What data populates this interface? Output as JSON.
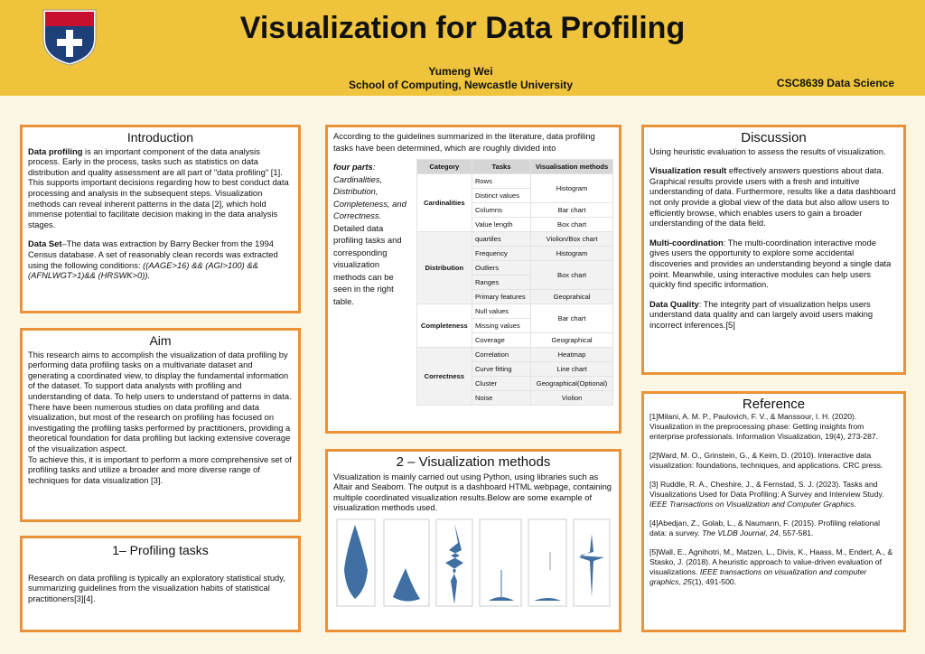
{
  "header": {
    "title": "Visualization for Data Profiling",
    "author": "Yumeng Wei",
    "affiliation": "School of Computing, Newcastle University",
    "course": "CSC8639 Data Science"
  },
  "introduction": {
    "heading": "Introduction",
    "lead": "Data profiling",
    "text": " is an important component of the data analysis process. Early in the process, tasks such as statistics on data distribution and quality assessment are all part of \"data profiling\" [1]. This supports important decisions regarding how to best conduct data processing and analysis in the subsequent steps. Visualization methods can reveal inherent patterns in the data [2], which hold immense potential to facilitate decision making in the data analysis stages.",
    "dataset_lead": "Data Set",
    "dataset_text": "–The data was extraction by Barry Becker from the 1994 Census database. A set of reasonably clean records was extracted using the following conditions: ",
    "dataset_conditions": "((AAGE>16) && (AGI>100) && (AFNLWGT>1)&& (HRSWK>0))."
  },
  "aim": {
    "heading": "Aim",
    "paragraphs": [
      "This research aims to accomplish the visualization of data profiling by performing data profiling tasks on a multivariate dataset and generating a coordinated view, to display the fundamental information of the dataset. To support data analysts with profiling and understanding of data. To help users to understand of patterns in data. There have been numerous studies on data profiling and data visualization, but most of the research on profiling has focused on investigating the profiling tasks performed by practitioners, providing a theoretical foundation for data profiling but lacking extensive coverage of the visualization aspect.",
      "To achieve this, it is important to perform a more comprehensive set of profiling tasks and utilize a broader and more diverse range of techniques for data visualization [3]."
    ]
  },
  "profiling": {
    "heading": "1– Profiling tasks",
    "text": " Research on data profiling is typically an exploratory statistical study, summarizing guidelines from the visualization habits of statistical practitioners[3][4]."
  },
  "tasks": {
    "intro": "According to the guidelines summarized in the literature, data profiling tasks have been determined, which are roughly divided into",
    "parts_lead": "four parts",
    "parts": ": Cardinalities, Distribution, Completeness, and Correctness.",
    "detail": "Detailed data profiling tasks and corresponding visualization methods can be seen in the right table."
  },
  "table": {
    "header": [
      "Category",
      "Tasks",
      "Visualisation methods"
    ],
    "categories": [
      "Cardinalities",
      "Distribution",
      "Completeness",
      "Correctness"
    ],
    "tasks": [
      "Rows",
      "Distinct values",
      "Columns",
      "Value length",
      "quartiles",
      "Frequency",
      "Outliers",
      "Ranges",
      "Primary features",
      "Null values",
      "Missing values",
      "Coverage",
      "Correlation",
      "Curve fitting",
      "Cluster",
      "Noise"
    ],
    "methods": [
      "Histogram",
      "Bar chart",
      "Box chart",
      "Violion/Box chart",
      "Histogram",
      "Box chart",
      "Geoprahical",
      "Bar chart",
      "Geographical",
      "Heatmap",
      "Line chart",
      "Geographical(Optional)",
      "Violion"
    ]
  },
  "methods": {
    "heading": "2 – Visualization methods",
    "text": "Visualization is mainly carried out using Python, using libraries such as Altair and Seaborn. The output is a dashboard HTML webpage, containing multiple coordinated visualization results.Below are some example of visualization methods used."
  },
  "discussion": {
    "heading": "Discussion",
    "intro": "Using heuristic evaluation to assess the results of visualization.",
    "items": [
      {
        "lead": "Visualization result",
        "text": " effectively answers questions about data. Graphical results provide users with a fresh and intuitive understanding of data. Furthermore, results like a data dashboard not only provide a global view of the data but also allow users to efficiently browse, which enables users to gain a broader understanding of the data field."
      },
      {
        "lead": "Multi-coordination",
        "text": ": The multi-coordination interactive mode gives users the opportunity to explore some accidental discoveries and provides an understanding beyond a single data point. Meanwhile, using interactive modules can help users quickly find specific information."
      },
      {
        "lead": "Data Quality",
        "text": ": The integrity part of visualization helps users understand data quality and can largely avoid users making incorrect inferences.[5]"
      }
    ]
  },
  "reference": {
    "heading": "Reference",
    "items": [
      [
        "[1]Milani, A. M. P., Paulovich, F. V., & Manssour, I. H. (2020). Visualization in the preprocessing phase: Getting insights from enterprise professionals. Information Visualization, 19(4), 273-287."
      ],
      [
        "[2]Ward, M. O., Grinstein, G., & Keim, D. (2010). Interactive data visualization: foundations, techniques, and applications. CRC press."
      ],
      [
        "[3] Ruddle, R. A., Cheshire, J., & Fernstad, S. J. (2023). Tasks and Visualizations Used for Data Profiling: A Survey and Interview Study. ",
        "IEEE Transactions on Visualization and Computer Graphics",
        "."
      ],
      [
        "[4]Abedjan, Z., Golab, L., & Naumann, F. (2015). Profiling relational data: a survey. ",
        "The VLDB Journal",
        ", ",
        "24",
        ", 557-581."
      ],
      [
        "[5]Wall, E., Agnihotri, M., Matzen, L., Divis, K., Haass, M., Endert, A., & Stasko, J. (2018). A heuristic approach to value-driven evaluation of visualizations. ",
        "IEEE transactions on visualization and computer graphics",
        ", ",
        "25",
        "(1), 491-500."
      ]
    ]
  }
}
